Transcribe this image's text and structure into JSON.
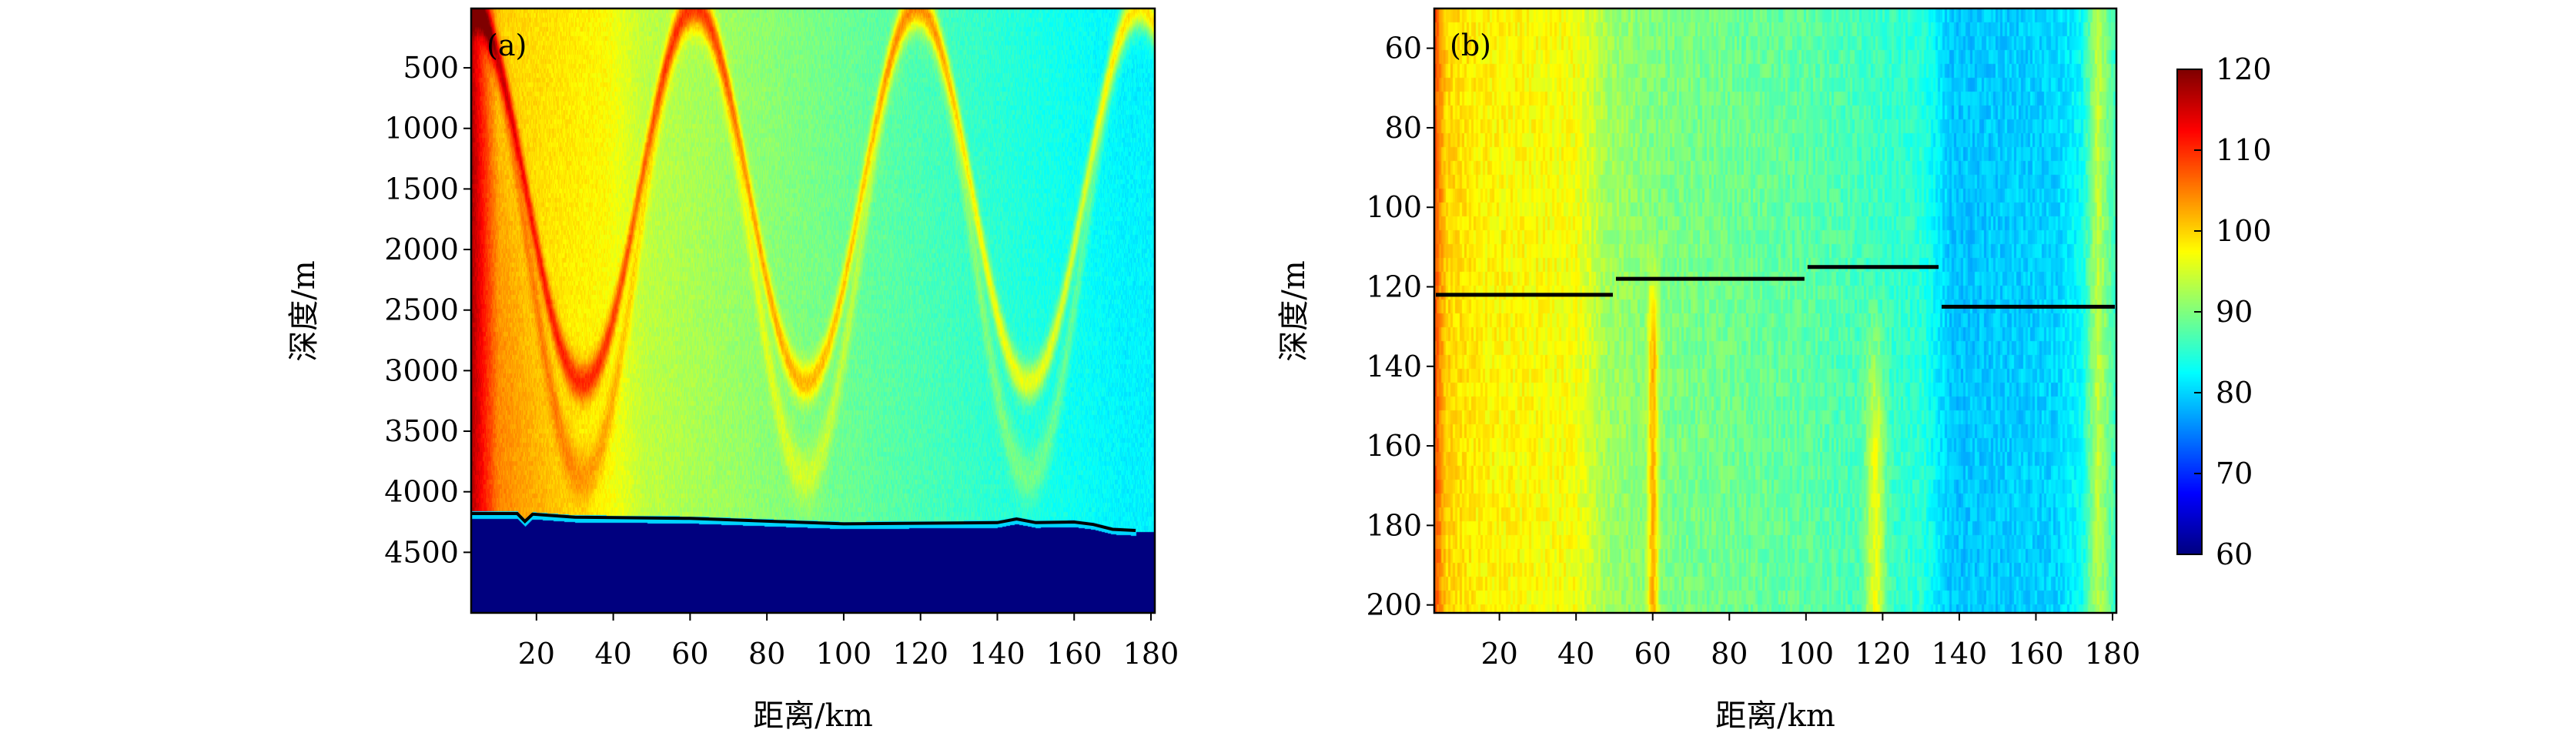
{
  "chart_data": [
    {
      "type": "heatmap",
      "panel_label": "(a)",
      "xlabel": "距离/km",
      "ylabel": "深度/m",
      "xlim": [
        3,
        181
      ],
      "ylim": [
        5000,
        10
      ],
      "y_inverted": true,
      "xticks": [
        20,
        40,
        60,
        80,
        100,
        120,
        140,
        160,
        180
      ],
      "yticks": [
        500,
        1000,
        1500,
        2000,
        2500,
        3000,
        3500,
        4000,
        4500
      ],
      "colormap": "jet (reversed: low=dark red, high=dark blue)",
      "clim": [
        60,
        120
      ],
      "convergence_zone_surface_km": [
        61,
        119,
        177
      ],
      "convergence_zone_turning_km": [
        32,
        90,
        148
      ],
      "turning_depth_m": 3100,
      "bathymetry_line": {
        "color": "#000000",
        "range_km": [
          3,
          15,
          17,
          19,
          30,
          60,
          100,
          140,
          145,
          150,
          160,
          165,
          170,
          176
        ],
        "depth_m": [
          4180,
          4180,
          4245,
          4185,
          4210,
          4220,
          4265,
          4255,
          4225,
          4255,
          4250,
          4270,
          4310,
          4320
        ]
      }
    },
    {
      "type": "heatmap",
      "panel_label": "(b)",
      "xlabel": "距离/km",
      "ylabel": "深度/m",
      "xlim": [
        3,
        181
      ],
      "ylim": [
        202,
        50
      ],
      "y_inverted": true,
      "xticks": [
        20,
        40,
        60,
        80,
        100,
        120,
        140,
        160,
        180
      ],
      "yticks": [
        60,
        80,
        100,
        120,
        140,
        160,
        180,
        200
      ],
      "colormap": "jet (reversed: low=dark red, high=dark blue)",
      "clim": [
        60,
        120
      ],
      "segments": [
        {
          "x": [
            3,
            50
          ],
          "y": 122
        },
        {
          "x": [
            50,
            100
          ],
          "y": 118
        },
        {
          "x": [
            100,
            135
          ],
          "y": 115
        },
        {
          "x": [
            135,
            181
          ],
          "y": 125
        }
      ]
    }
  ],
  "colorbar": {
    "ticks": [
      60,
      70,
      80,
      90,
      100,
      110,
      120
    ],
    "labels": [
      "60",
      "70",
      "80",
      "90",
      "100",
      "110",
      "120"
    ]
  }
}
